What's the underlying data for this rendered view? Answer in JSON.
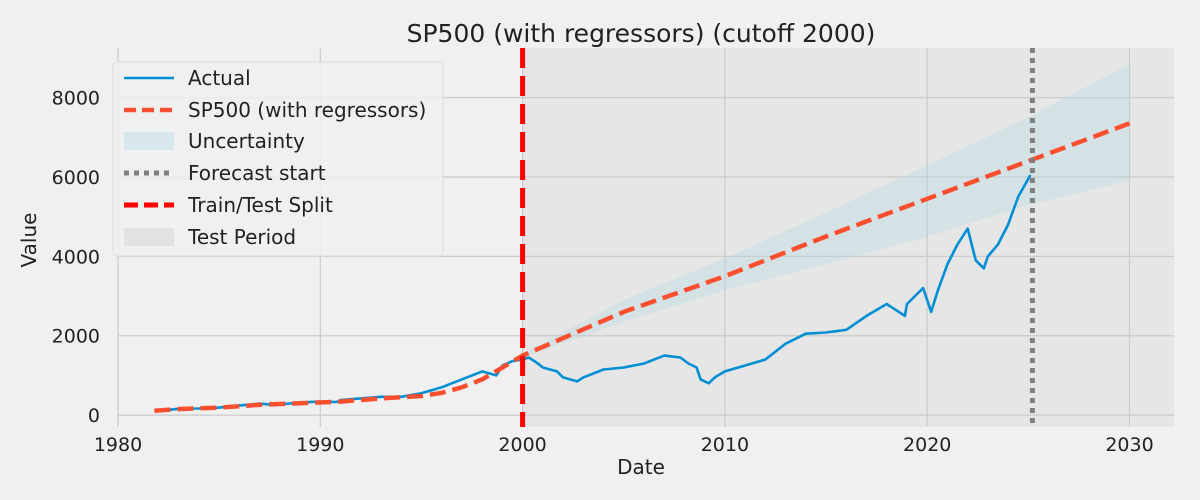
{
  "chart_data": {
    "type": "line",
    "title": "SP500 (with regressors) (cutoff 2000)",
    "xlabel": "Date",
    "ylabel": "Value",
    "xlim": [
      1980,
      2032.2
    ],
    "ylim": [
      -300,
      9250
    ],
    "x_ticks": [
      "1980",
      "1990",
      "2000",
      "2010",
      "2020",
      "2030"
    ],
    "y_ticks": [
      "0",
      "2000",
      "4000",
      "6000",
      "8000"
    ],
    "grid": true,
    "legend_position": "top-left",
    "colors": {
      "actual": "#008fd5",
      "forecast": "#fc4f30",
      "uncertainty": "#add8e6",
      "forecast_start": "#808080",
      "split": "#ff0000",
      "test_period": "#d3d3d3"
    },
    "series": [
      {
        "name": "Actual",
        "x": [
          1981.8,
          1982.5,
          1983,
          1984,
          1985,
          1986,
          1987,
          1987.8,
          1988,
          1989,
          1990,
          1990.8,
          1991,
          1992,
          1993,
          1994,
          1995,
          1996,
          1997,
          1998,
          1998.7,
          1999,
          1999.5,
          2000,
          2000.3,
          2000.7,
          2001,
          2001.7,
          2002,
          2002.7,
          2003,
          2004,
          2005,
          2006,
          2007,
          2007.8,
          2008.2,
          2008.6,
          2008.8,
          2009.2,
          2009.5,
          2010,
          2011,
          2012,
          2013,
          2014,
          2015,
          2016,
          2017,
          2018,
          2018.9,
          2019,
          2019.8,
          2020.2,
          2020.5,
          2021,
          2021.5,
          2022,
          2022.4,
          2022.8,
          2023,
          2023.5,
          2024,
          2024.5,
          2025.1
        ],
        "y": [
          120,
          130,
          160,
          165,
          190,
          240,
          290,
          250,
          270,
          320,
          340,
          330,
          380,
          420,
          460,
          460,
          550,
          700,
          900,
          1100,
          1000,
          1250,
          1360,
          1400,
          1450,
          1320,
          1200,
          1100,
          950,
          850,
          950,
          1150,
          1200,
          1300,
          1500,
          1450,
          1300,
          1200,
          900,
          800,
          950,
          1100,
          1250,
          1400,
          1800,
          2050,
          2080,
          2150,
          2500,
          2800,
          2500,
          2800,
          3200,
          2600,
          3100,
          3800,
          4300,
          4700,
          3900,
          3700,
          4000,
          4300,
          4800,
          5500,
          6050
        ]
      },
      {
        "name": "SP500 (with regressors)",
        "x": [
          1981.8,
          1983,
          1985,
          1987,
          1989,
          1991,
          1993,
          1995,
          1996,
          1997,
          1998,
          1999,
          2000,
          2005,
          2010,
          2015,
          2020,
          2025,
          2030
        ],
        "y": [
          110,
          150,
          190,
          260,
          300,
          340,
          420,
          480,
          560,
          700,
          900,
          1200,
          1500,
          2600,
          3500,
          4500,
          5450,
          6400,
          7350
        ]
      }
    ],
    "uncertainty_band": {
      "name": "Uncertainty",
      "x": [
        2000,
        2005,
        2010,
        2015,
        2020,
        2025,
        2030
      ],
      "lower": [
        1450,
        2350,
        3150,
        3800,
        4500,
        5300,
        5900
      ],
      "upper": [
        1550,
        2900,
        3950,
        5100,
        6300,
        7500,
        8850
      ]
    },
    "vlines": [
      {
        "name": "Forecast start",
        "x": 2025.2
      },
      {
        "name": "Train/Test Split",
        "x": 2000
      }
    ],
    "shaded_region": {
      "name": "Test Period",
      "x": [
        2000,
        2032.2
      ]
    },
    "legend": [
      "Actual",
      "SP500 (with regressors)",
      "Uncertainty",
      "Forecast start",
      "Train/Test Split",
      "Test Period"
    ]
  }
}
